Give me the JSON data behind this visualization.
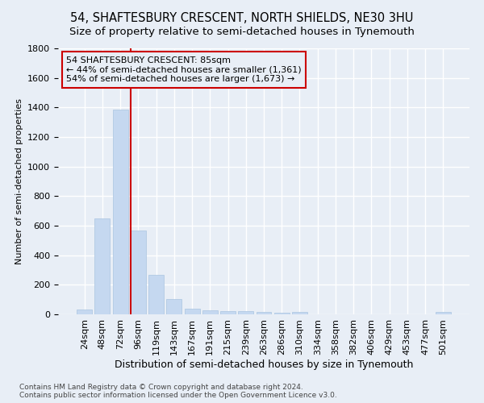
{
  "title": "54, SHAFTESBURY CRESCENT, NORTH SHIELDS, NE30 3HU",
  "subtitle": "Size of property relative to semi-detached houses in Tynemouth",
  "xlabel": "Distribution of semi-detached houses by size in Tynemouth",
  "ylabel": "Number of semi-detached properties",
  "footnote": "Contains HM Land Registry data © Crown copyright and database right 2024.\nContains public sector information licensed under the Open Government Licence v3.0.",
  "categories": [
    "24sqm",
    "48sqm",
    "72sqm",
    "96sqm",
    "119sqm",
    "143sqm",
    "167sqm",
    "191sqm",
    "215sqm",
    "239sqm",
    "263sqm",
    "286sqm",
    "310sqm",
    "334sqm",
    "358sqm",
    "382sqm",
    "406sqm",
    "429sqm",
    "453sqm",
    "477sqm",
    "501sqm"
  ],
  "values": [
    35,
    648,
    1385,
    568,
    265,
    105,
    38,
    28,
    22,
    20,
    15,
    10,
    14,
    0,
    0,
    0,
    0,
    0,
    0,
    0,
    14
  ],
  "bar_color": "#c5d8f0",
  "bar_edge_color": "#aac4e0",
  "vline_x": 3.0,
  "vline_color": "#cc0000",
  "annotation_line1": "54 SHAFTESBURY CRESCENT: 85sqm",
  "annotation_line2": "← 44% of semi-detached houses are smaller (1,361)",
  "annotation_line3": "54% of semi-detached houses are larger (1,673) →",
  "annotation_box_color": "#cc0000",
  "ylim": [
    0,
    1800
  ],
  "yticks": [
    0,
    200,
    400,
    600,
    800,
    1000,
    1200,
    1400,
    1600,
    1800
  ],
  "bg_color": "#e8eef6",
  "grid_color": "#ffffff",
  "title_fontsize": 10.5,
  "subtitle_fontsize": 9.5,
  "xlabel_fontsize": 9,
  "ylabel_fontsize": 8,
  "tick_fontsize": 8,
  "footnote_fontsize": 6.5,
  "annotation_fontsize": 8
}
